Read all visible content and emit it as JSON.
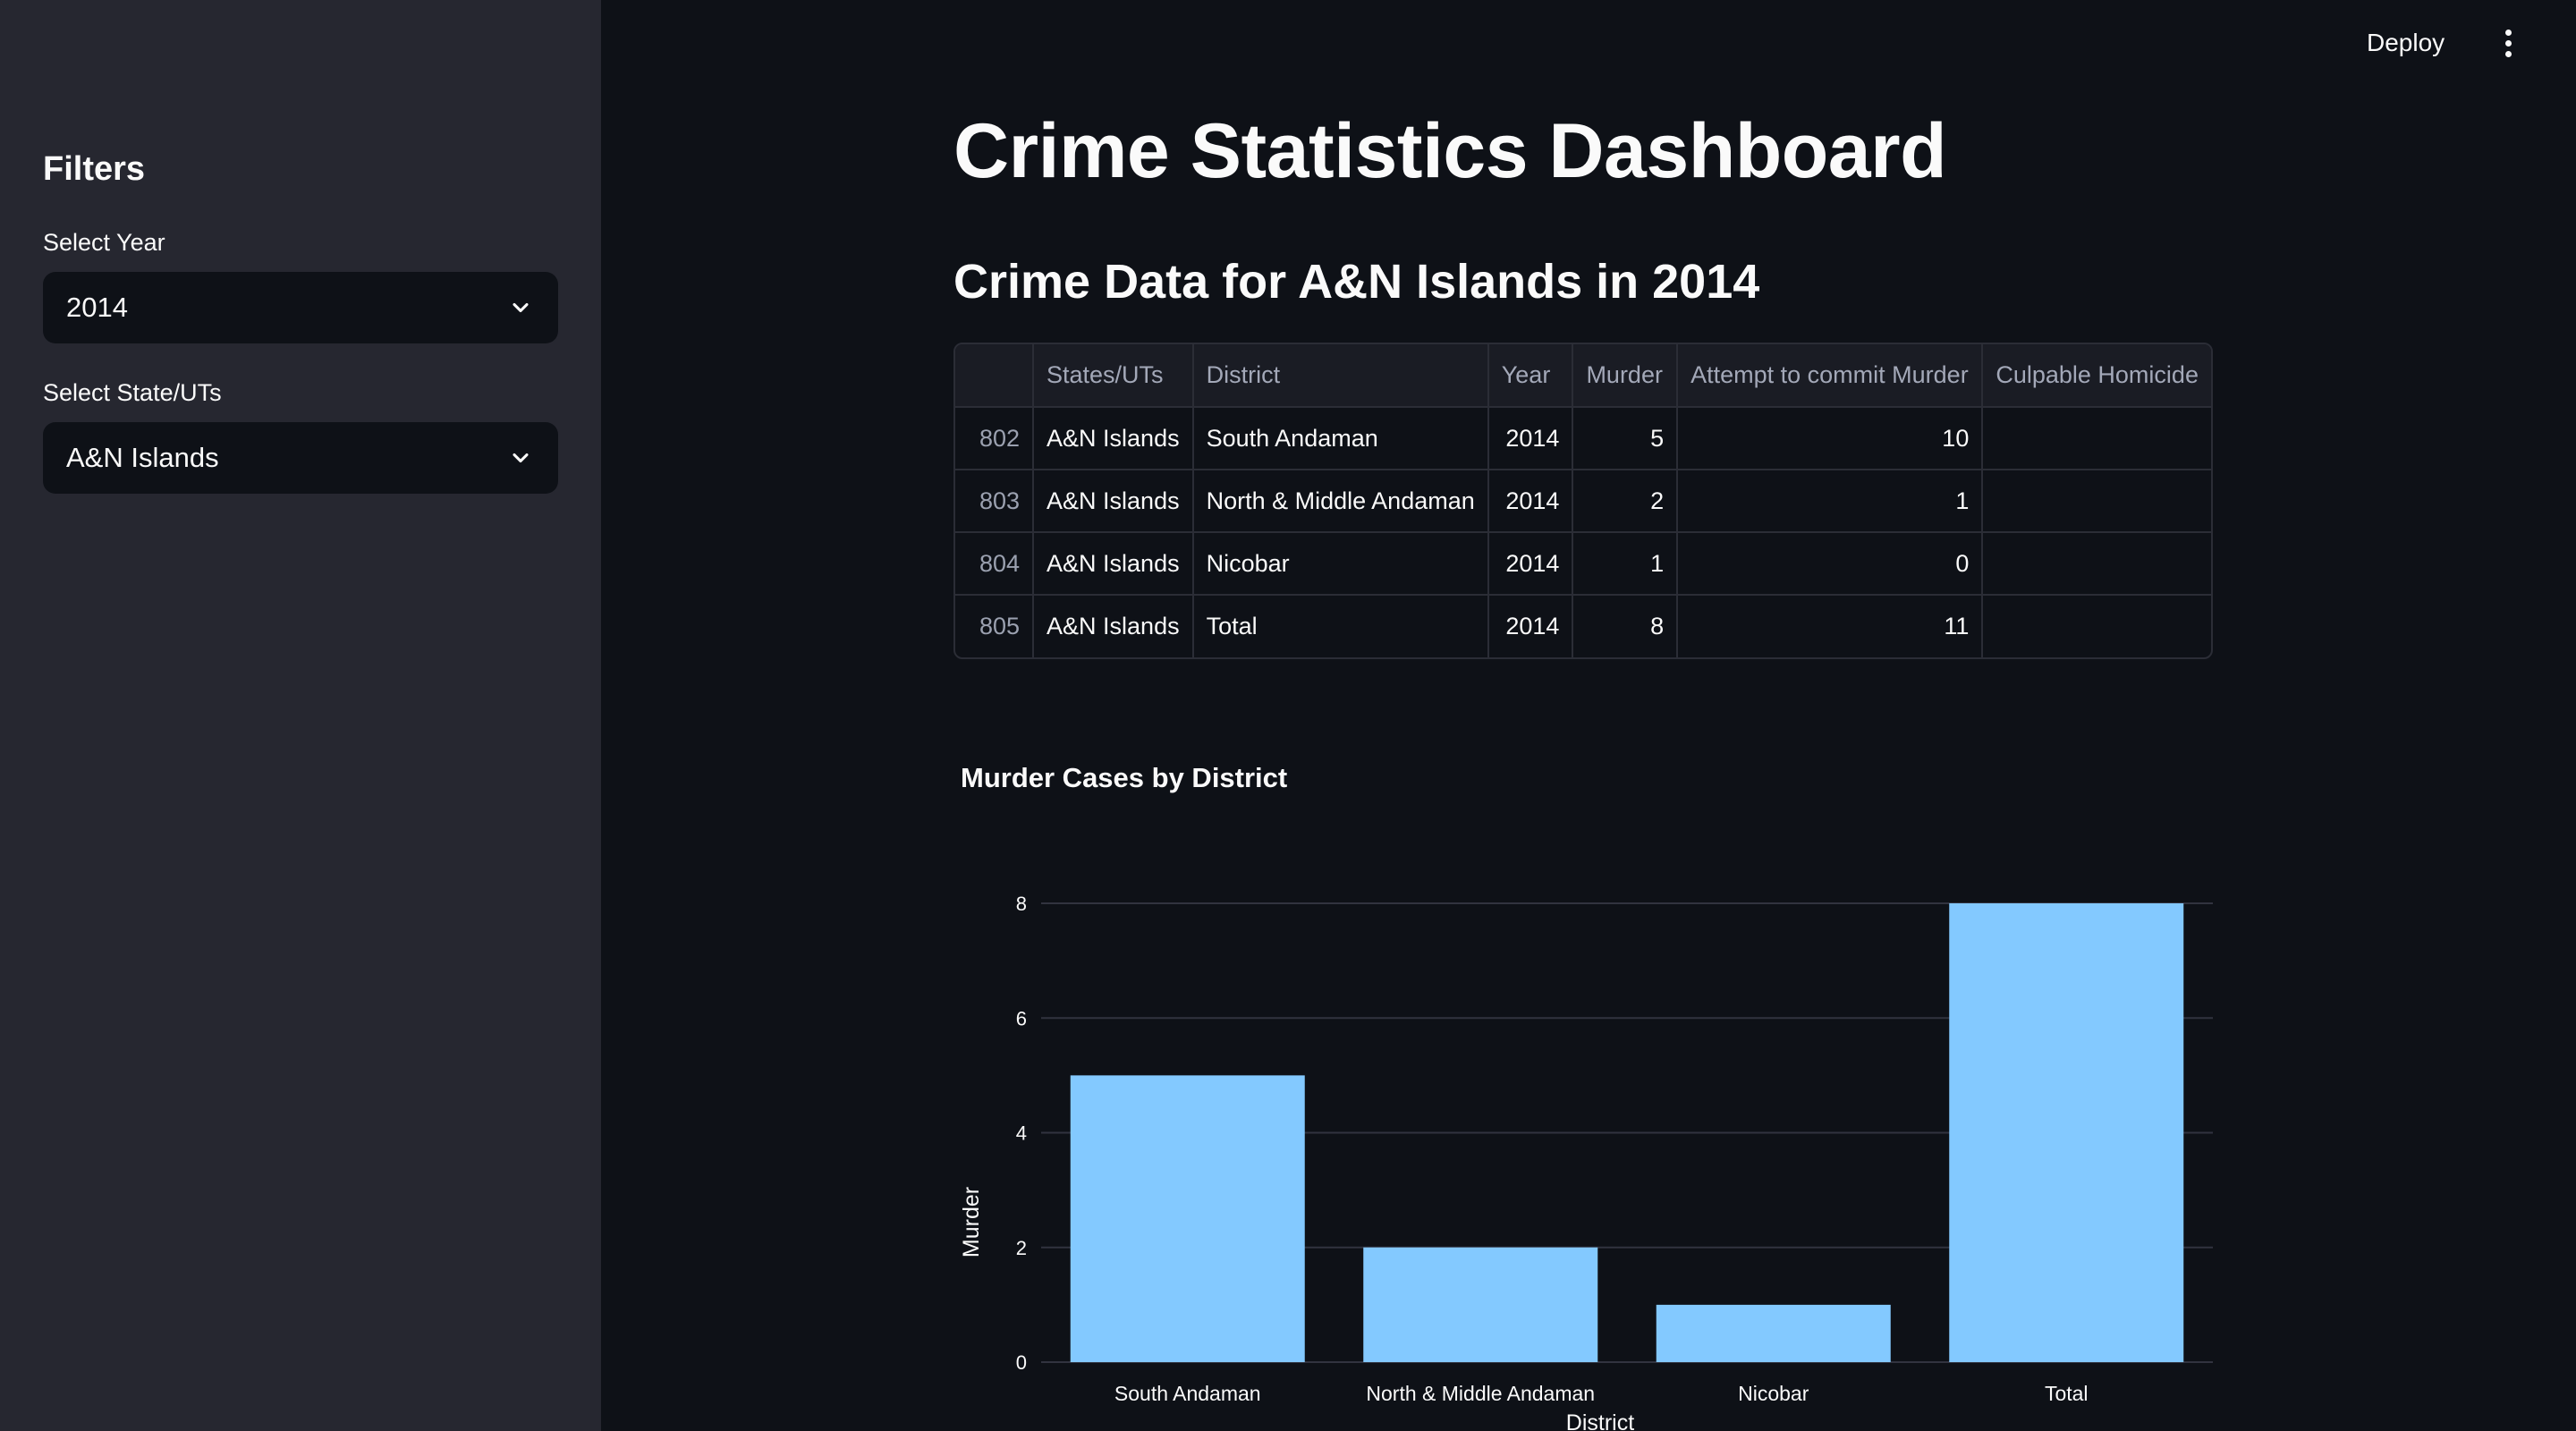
{
  "sidebar": {
    "title": "Filters",
    "year": {
      "label": "Select Year",
      "value": "2014"
    },
    "state": {
      "label": "Select State/UTs",
      "value": "A&N Islands"
    }
  },
  "header": {
    "deploy_label": "Deploy"
  },
  "main": {
    "title": "Crime Statistics Dashboard",
    "subheader": "Crime Data for A&N Islands in 2014",
    "table": {
      "columns": [
        "",
        "States/UTs",
        "District",
        "Year",
        "Murder",
        "Attempt to commit Murder",
        "Culpable Homicide"
      ],
      "rows": [
        [
          "802",
          "A&N Islands",
          "South Andaman",
          "2014",
          "5",
          "10",
          ""
        ],
        [
          "803",
          "A&N Islands",
          "North & Middle Andaman",
          "2014",
          "2",
          "1",
          ""
        ],
        [
          "804",
          "A&N Islands",
          "Nicobar",
          "2014",
          "1",
          "0",
          ""
        ],
        [
          "805",
          "A&N Islands",
          "Total",
          "2014",
          "8",
          "11",
          ""
        ]
      ]
    }
  },
  "chart_data": {
    "type": "bar",
    "title": "Murder Cases by District",
    "xlabel": "District",
    "ylabel": "Murder",
    "categories": [
      "South Andaman",
      "North & Middle Andaman",
      "Nicobar",
      "Total"
    ],
    "values": [
      5,
      2,
      1,
      8
    ],
    "yticks": [
      "0",
      "2",
      "4",
      "6",
      "8"
    ],
    "ylim": [
      0,
      8
    ],
    "grid": true,
    "bar_color": "#83c9ff"
  }
}
